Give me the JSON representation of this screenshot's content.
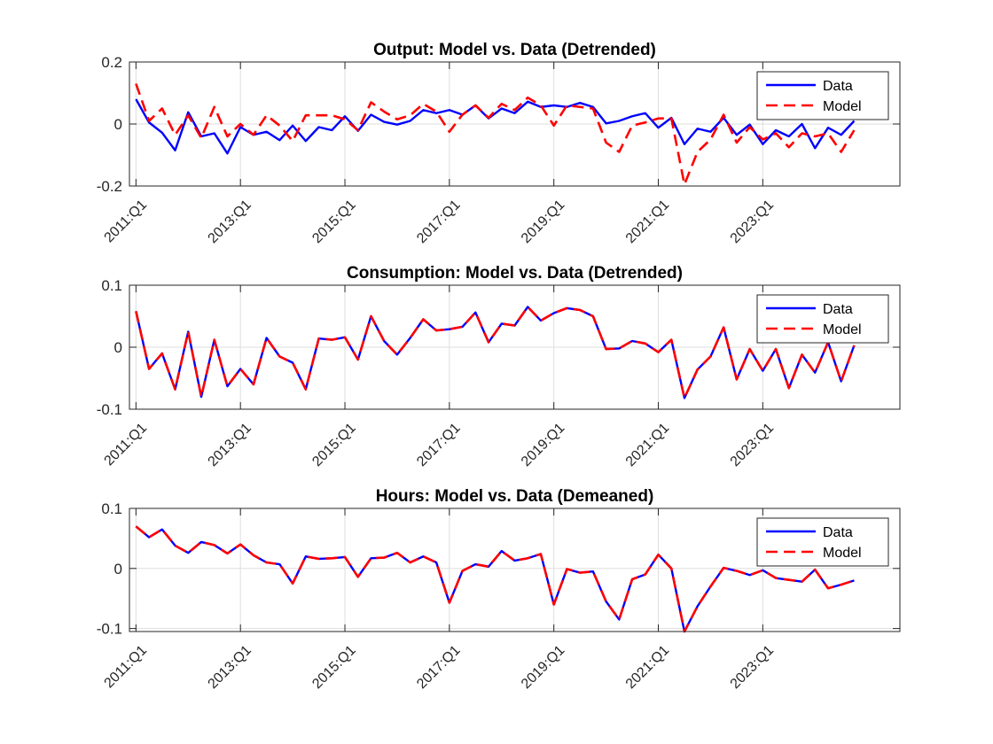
{
  "figure": {
    "background": "#ffffff"
  },
  "chart_data": [
    {
      "type": "line",
      "title": "Output: Model vs. Data (Detrended)",
      "xlabel": "",
      "ylabel": "",
      "ylim": [
        -0.2,
        0.2
      ],
      "yticks": [
        -0.2,
        0,
        0.2
      ],
      "yticklabels": [
        "-0.2",
        "0",
        "0.2"
      ],
      "xticks": [
        "2011:Q1",
        "2013:Q1",
        "2015:Q1",
        "2017:Q1",
        "2019:Q1",
        "2021:Q1",
        "2023:Q1"
      ],
      "xtick_index": [
        0,
        8,
        16,
        24,
        32,
        40,
        48
      ],
      "xlim_index": [
        -0.5,
        58.5
      ],
      "grid": true,
      "legend_position": "top-right",
      "series": [
        {
          "name": "Data",
          "color": "#0000ff",
          "style": "solid",
          "values": [
            0.08,
            0.005,
            -0.028,
            -0.085,
            0.038,
            -0.04,
            -0.03,
            -0.095,
            -0.01,
            -0.035,
            -0.025,
            -0.052,
            -0.005,
            -0.055,
            -0.01,
            -0.02,
            0.025,
            -0.022,
            0.03,
            0.007,
            -0.002,
            0.01,
            0.045,
            0.035,
            0.045,
            0.03,
            0.06,
            0.018,
            0.05,
            0.035,
            0.072,
            0.055,
            0.06,
            0.055,
            0.068,
            0.055,
            0.002,
            0.01,
            0.025,
            0.035,
            -0.012,
            0.02,
            -0.065,
            -0.015,
            -0.025,
            0.02,
            -0.035,
            -0.002,
            -0.065,
            -0.02,
            -0.04,
            0.0,
            -0.078,
            -0.012,
            -0.035,
            0.01
          ]
        },
        {
          "name": "Model",
          "color": "#ff0000",
          "style": "dashed",
          "values": [
            0.13,
            0.01,
            0.05,
            -0.035,
            0.028,
            -0.045,
            0.055,
            -0.04,
            0.0,
            -0.035,
            0.028,
            -0.005,
            -0.055,
            0.028,
            0.028,
            0.028,
            0.015,
            -0.02,
            0.07,
            0.04,
            0.015,
            0.028,
            0.065,
            0.04,
            -0.025,
            0.03,
            0.06,
            0.02,
            0.065,
            0.045,
            0.085,
            0.06,
            -0.005,
            0.06,
            0.055,
            0.05,
            -0.06,
            -0.09,
            -0.005,
            0.005,
            0.018,
            0.018,
            -0.195,
            -0.09,
            -0.05,
            0.03,
            -0.06,
            -0.01,
            -0.05,
            -0.03,
            -0.075,
            -0.03,
            -0.04,
            -0.03,
            -0.09,
            -0.02
          ]
        }
      ]
    },
    {
      "type": "line",
      "title": "Consumption: Model vs. Data (Detrended)",
      "xlabel": "",
      "ylabel": "",
      "ylim": [
        -0.1,
        0.1
      ],
      "yticks": [
        -0.1,
        0,
        0.1
      ],
      "yticklabels": [
        "-0.1",
        "0",
        "0.1"
      ],
      "xticks": [
        "2011:Q1",
        "2013:Q1",
        "2015:Q1",
        "2017:Q1",
        "2019:Q1",
        "2021:Q1",
        "2023:Q1"
      ],
      "xtick_index": [
        0,
        8,
        16,
        24,
        32,
        40,
        48
      ],
      "xlim_index": [
        -0.5,
        58.5
      ],
      "grid": true,
      "legend_position": "top-right",
      "series": [
        {
          "name": "Data",
          "color": "#0000ff",
          "style": "solid",
          "values": [
            0.058,
            -0.035,
            -0.01,
            -0.068,
            0.025,
            -0.08,
            0.012,
            -0.063,
            -0.035,
            -0.06,
            0.015,
            -0.015,
            -0.025,
            -0.068,
            0.014,
            0.012,
            0.016,
            -0.02,
            0.05,
            0.01,
            -0.012,
            0.015,
            0.045,
            0.027,
            0.029,
            0.033,
            0.056,
            0.008,
            0.038,
            0.035,
            0.065,
            0.043,
            0.055,
            0.063,
            0.06,
            0.05,
            -0.003,
            -0.002,
            0.01,
            0.006,
            -0.008,
            0.012,
            -0.082,
            -0.036,
            -0.015,
            0.032,
            -0.052,
            -0.003,
            -0.038,
            -0.003,
            -0.066,
            -0.012,
            -0.041,
            0.008,
            -0.055,
            0.003
          ]
        },
        {
          "name": "Model",
          "color": "#ff0000",
          "style": "dashed",
          "values": [
            0.058,
            -0.035,
            -0.01,
            -0.068,
            0.025,
            -0.08,
            0.012,
            -0.063,
            -0.035,
            -0.06,
            0.015,
            -0.015,
            -0.025,
            -0.068,
            0.014,
            0.012,
            0.016,
            -0.02,
            0.05,
            0.01,
            -0.012,
            0.015,
            0.045,
            0.027,
            0.029,
            0.033,
            0.056,
            0.008,
            0.038,
            0.035,
            0.065,
            0.043,
            0.055,
            0.063,
            0.06,
            0.05,
            -0.003,
            -0.002,
            0.01,
            0.006,
            -0.008,
            0.012,
            -0.082,
            -0.036,
            -0.015,
            0.032,
            -0.052,
            -0.003,
            -0.038,
            -0.003,
            -0.066,
            -0.012,
            -0.041,
            0.008,
            -0.055,
            0.003
          ]
        }
      ]
    },
    {
      "type": "line",
      "title": "Hours: Model vs. Data (Demeaned)",
      "xlabel": "",
      "ylabel": "",
      "ylim": [
        -0.105,
        0.1
      ],
      "yticks": [
        -0.1,
        0,
        0.1
      ],
      "yticklabels": [
        "-0.1",
        "0",
        "0.1"
      ],
      "xticks": [
        "2011:Q1",
        "2013:Q1",
        "2015:Q1",
        "2017:Q1",
        "2019:Q1",
        "2021:Q1",
        "2023:Q1"
      ],
      "xtick_index": [
        0,
        8,
        16,
        24,
        32,
        40,
        48
      ],
      "xlim_index": [
        -0.5,
        58.5
      ],
      "grid": true,
      "legend_position": "top-right",
      "series": [
        {
          "name": "Data",
          "color": "#0000ff",
          "style": "solid",
          "values": [
            0.07,
            0.052,
            0.065,
            0.038,
            0.026,
            0.044,
            0.039,
            0.025,
            0.04,
            0.022,
            0.01,
            0.007,
            -0.025,
            0.02,
            0.016,
            0.017,
            0.019,
            -0.014,
            0.017,
            0.018,
            0.026,
            0.01,
            0.02,
            0.01,
            -0.057,
            -0.004,
            0.007,
            0.003,
            0.029,
            0.013,
            0.017,
            0.024,
            -0.06,
            -0.001,
            -0.007,
            -0.005,
            -0.055,
            -0.085,
            -0.018,
            -0.01,
            0.023,
            0.0,
            -0.105,
            -0.063,
            -0.03,
            0.001,
            -0.004,
            -0.011,
            -0.003,
            -0.016,
            -0.019,
            -0.022,
            -0.002,
            -0.033,
            -0.027,
            -0.02
          ]
        },
        {
          "name": "Model",
          "color": "#ff0000",
          "style": "dashed",
          "values": [
            0.07,
            0.052,
            0.065,
            0.038,
            0.026,
            0.044,
            0.039,
            0.025,
            0.04,
            0.022,
            0.01,
            0.007,
            -0.025,
            0.02,
            0.016,
            0.017,
            0.019,
            -0.014,
            0.017,
            0.018,
            0.026,
            0.01,
            0.02,
            0.01,
            -0.057,
            -0.004,
            0.007,
            0.003,
            0.029,
            0.013,
            0.017,
            0.024,
            -0.06,
            -0.001,
            -0.007,
            -0.005,
            -0.055,
            -0.085,
            -0.018,
            -0.01,
            0.023,
            0.0,
            -0.105,
            -0.063,
            -0.03,
            0.001,
            -0.004,
            -0.011,
            -0.003,
            -0.016,
            -0.019,
            -0.022,
            -0.002,
            -0.033,
            -0.027,
            -0.02
          ]
        }
      ]
    }
  ]
}
